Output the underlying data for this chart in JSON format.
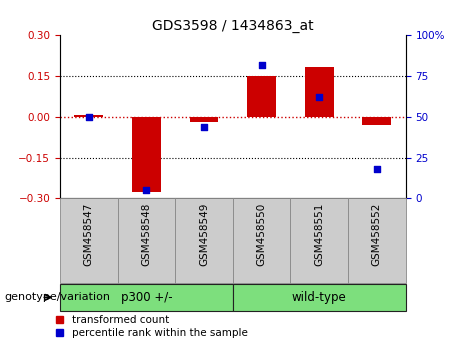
{
  "title": "GDS3598 / 1434863_at",
  "samples": [
    "GSM458547",
    "GSM458548",
    "GSM458549",
    "GSM458550",
    "GSM458551",
    "GSM458552"
  ],
  "red_bars": [
    0.005,
    -0.278,
    -0.02,
    0.152,
    0.185,
    -0.03
  ],
  "blue_dots": [
    50,
    5,
    44,
    82,
    62,
    18
  ],
  "group_spans": [
    {
      "label": "p300 +/-",
      "start": 0,
      "end": 2
    },
    {
      "label": "wild-type",
      "start": 3,
      "end": 5
    }
  ],
  "ylim_left": [
    -0.3,
    0.3
  ],
  "ylim_right": [
    0,
    100
  ],
  "left_yticks": [
    -0.3,
    -0.15,
    0,
    0.15,
    0.3
  ],
  "right_yticks": [
    0,
    25,
    50,
    75,
    100
  ],
  "right_yticklabels": [
    "0",
    "25",
    "50",
    "75",
    "100%"
  ],
  "bar_color": "#cc0000",
  "dot_color": "#0000cc",
  "hline_color": "#cc0000",
  "grid_color": "#000000",
  "grid_levels": [
    -0.15,
    0.15
  ],
  "legend_red": "transformed count",
  "legend_blue": "percentile rank within the sample",
  "genotype_label": "genotype/variation",
  "sample_box_color": "#cccccc",
  "group_fill_color": "#7ddf7d",
  "title_fontsize": 10,
  "tick_fontsize": 7.5,
  "label_fontsize": 7.5,
  "legend_fontsize": 7.5,
  "group_fontsize": 8.5,
  "genotype_fontsize": 8
}
